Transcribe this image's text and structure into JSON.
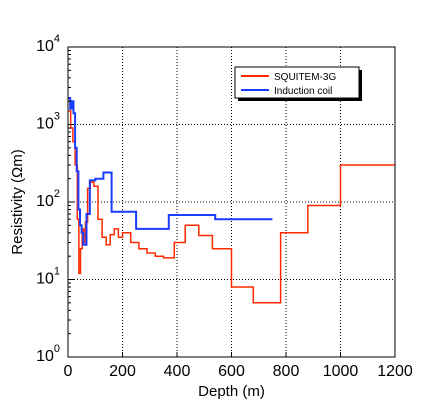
{
  "chart_data": {
    "type": "line",
    "xlabel": "Depth (m)",
    "ylabel": "Resistivity (Ωm)",
    "xlim": [
      0,
      1200
    ],
    "ylim": [
      1,
      10000
    ],
    "yscale": "log",
    "grid": true,
    "legend_position": "top-right",
    "x_ticks": [
      "0",
      "200",
      "400",
      "600",
      "800",
      "1000",
      "1200"
    ],
    "y_ticks": [
      {
        "base": "10",
        "exp": "0"
      },
      {
        "base": "10",
        "exp": "1"
      },
      {
        "base": "10",
        "exp": "2"
      },
      {
        "base": "10",
        "exp": "3"
      },
      {
        "base": "10",
        "exp": "4"
      }
    ],
    "series": [
      {
        "name": "SQUITEM-3G",
        "color": "#ff2a00",
        "x": [
          0,
          10,
          10,
          18,
          18,
          26,
          26,
          34,
          34,
          40,
          40,
          46,
          46,
          52,
          52,
          58,
          58,
          64,
          64,
          72,
          72,
          82,
          82,
          95,
          95,
          110,
          110,
          125,
          125,
          140,
          140,
          155,
          155,
          170,
          170,
          185,
          185,
          200,
          200,
          230,
          230,
          260,
          260,
          290,
          290,
          320,
          320,
          350,
          350,
          390,
          390,
          430,
          430,
          480,
          480,
          530,
          530,
          600,
          600,
          680,
          680,
          780,
          780,
          880,
          880,
          1000,
          1000,
          1200
        ],
        "y": [
          1500,
          1500,
          900,
          900,
          600,
          600,
          300,
          300,
          60,
          60,
          12,
          12,
          25,
          25,
          45,
          45,
          30,
          30,
          55,
          55,
          150,
          150,
          180,
          180,
          160,
          160,
          60,
          60,
          35,
          35,
          28,
          28,
          38,
          38,
          45,
          45,
          35,
          35,
          40,
          40,
          30,
          30,
          25,
          25,
          22,
          22,
          20,
          20,
          19,
          19,
          30,
          30,
          50,
          50,
          37,
          37,
          25,
          25,
          8,
          8,
          5,
          5,
          40,
          40,
          90,
          90,
          300,
          300
        ]
      },
      {
        "name": "Induction coil",
        "color": "#1a3cff",
        "x": [
          0,
          8,
          8,
          14,
          14,
          20,
          20,
          26,
          26,
          32,
          32,
          38,
          38,
          44,
          44,
          50,
          50,
          56,
          56,
          68,
          68,
          80,
          80,
          100,
          100,
          130,
          130,
          160,
          160,
          250,
          250,
          370,
          370,
          540,
          540,
          750
        ],
        "y": [
          2200,
          2200,
          1600,
          1600,
          2000,
          2000,
          1400,
          1400,
          500,
          500,
          250,
          250,
          80,
          80,
          50,
          50,
          40,
          40,
          28,
          28,
          70,
          70,
          190,
          190,
          200,
          200,
          240,
          240,
          75,
          75,
          45,
          45,
          68,
          68,
          60,
          60
        ]
      }
    ]
  }
}
